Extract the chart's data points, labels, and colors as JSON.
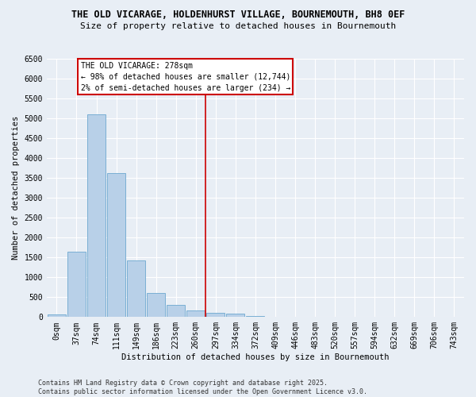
{
  "title": "THE OLD VICARAGE, HOLDENHURST VILLAGE, BOURNEMOUTH, BH8 0EF",
  "subtitle": "Size of property relative to detached houses in Bournemouth",
  "xlabel": "Distribution of detached houses by size in Bournemouth",
  "ylabel": "Number of detached properties",
  "bar_color": "#b8d0e8",
  "bar_edge_color": "#7aafd4",
  "background_color": "#e8eef5",
  "grid_color": "#ffffff",
  "categories": [
    "0sqm",
    "37sqm",
    "74sqm",
    "111sqm",
    "149sqm",
    "186sqm",
    "223sqm",
    "260sqm",
    "297sqm",
    "334sqm",
    "372sqm",
    "409sqm",
    "446sqm",
    "483sqm",
    "520sqm",
    "557sqm",
    "594sqm",
    "632sqm",
    "669sqm",
    "706sqm",
    "743sqm"
  ],
  "values": [
    60,
    1650,
    5100,
    3620,
    1420,
    610,
    310,
    160,
    110,
    80,
    30,
    10,
    5,
    2,
    1,
    1,
    1,
    0,
    0,
    0,
    0
  ],
  "property_line_x": 7.5,
  "annotation_title": "THE OLD VICARAGE: 278sqm",
  "annotation_line1": "← 98% of detached houses are smaller (12,744)",
  "annotation_line2": "2% of semi-detached houses are larger (234) →",
  "annotation_box_color": "#ffffff",
  "annotation_border_color": "#cc0000",
  "vline_color": "#cc0000",
  "footer1": "Contains HM Land Registry data © Crown copyright and database right 2025.",
  "footer2": "Contains public sector information licensed under the Open Government Licence v3.0.",
  "ylim": [
    0,
    6500
  ],
  "yticks": [
    0,
    500,
    1000,
    1500,
    2000,
    2500,
    3000,
    3500,
    4000,
    4500,
    5000,
    5500,
    6000,
    6500
  ],
  "title_fontsize": 8.5,
  "subtitle_fontsize": 8.0,
  "tick_fontsize": 7.0,
  "label_fontsize": 7.5,
  "footer_fontsize": 6.0
}
